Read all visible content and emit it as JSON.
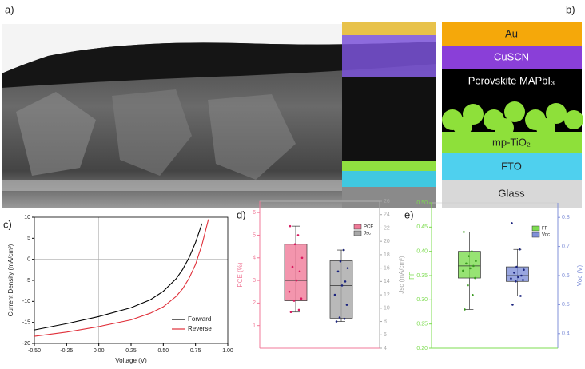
{
  "panel_labels": [
    "a)",
    "b)",
    "c)",
    "d)",
    "e)"
  ],
  "diagram": {
    "layers": [
      "Au",
      "CuSCN",
      "Perovskite MAPbI₃",
      "mp-TiO₂",
      "FTO",
      "Glass"
    ]
  },
  "chart_data": [
    {
      "type": "line",
      "x_label": "Voltage (V)",
      "y_label": "Current Density (mA/cm²)",
      "x": [
        -0.5,
        -0.25,
        0,
        0.25,
        0.4,
        0.5,
        0.6,
        0.65,
        0.7,
        0.75,
        0.8,
        0.85
      ],
      "xlim": [
        -0.5,
        1.0
      ],
      "xticks": [
        {
          "value": -0.5,
          "label": "-0.50"
        },
        {
          "value": -0.25,
          "label": "-0.25"
        },
        {
          "value": 0,
          "label": "0.00"
        },
        {
          "value": 0.25,
          "label": "0.25"
        },
        {
          "value": 0.5,
          "label": "0.50"
        },
        {
          "value": 0.75,
          "label": "0.75"
        },
        {
          "value": 1.0,
          "label": "1.00"
        }
      ],
      "ylim": [
        -20,
        10
      ],
      "yticks": [
        -20,
        -15,
        -10,
        -5,
        0,
        5,
        10
      ],
      "legend": "lower right",
      "series": [
        {
          "name": "Forward",
          "color": "#000000",
          "values": [
            -16.8,
            -15.3,
            -13.6,
            -11.5,
            -9.6,
            -7.6,
            -4.6,
            -2.4,
            0.4,
            4.0,
            8.5,
            null
          ]
        },
        {
          "name": "Reverse",
          "color": "#e0303a",
          "values": [
            -18.3,
            -17.3,
            -16.0,
            -14.4,
            -12.8,
            -11.3,
            -8.8,
            -7.0,
            -4.5,
            -1.2,
            3.5,
            9.5
          ]
        }
      ]
    },
    {
      "type": "box",
      "y_label": "PCE (%)",
      "y2_label": "Jsc (mA/cm²)",
      "ylim": [
        0,
        6.5
      ],
      "yticks": [
        1,
        2,
        3,
        4,
        5,
        6
      ],
      "y2lim": [
        4,
        26
      ],
      "y2ticks": [
        4,
        6,
        8,
        10,
        12,
        14,
        16,
        18,
        20,
        22,
        24,
        26
      ],
      "legend": "upper right",
      "series": [
        {
          "name": "PCE",
          "color": "#f07a98",
          "min": 1.6,
          "q1": 2.1,
          "median": 3.0,
          "q3": 4.6,
          "max": 5.4,
          "points": [
            1.6,
            1.7,
            2.1,
            2.2,
            2.5,
            3.0,
            3.4,
            3.6,
            4.0,
            4.6,
            5.0,
            5.4
          ]
        },
        {
          "name": "Jsc",
          "axis": "y2",
          "color": "#a8a8a8",
          "min": 8.0,
          "q1": 8.5,
          "median": 13.4,
          "q3": 17.1,
          "max": 18.7,
          "points": [
            8.0,
            8.4,
            8.6,
            10.5,
            12.0,
            13.4,
            14.0,
            15.5,
            16.0,
            17.0,
            18.7
          ]
        }
      ]
    },
    {
      "type": "box",
      "y_label": "FF",
      "y2_label": "Voc (V)",
      "ylim": [
        0.2,
        0.5
      ],
      "yticks": [
        {
          "value": 0.2,
          "label": "0.20"
        },
        0.25,
        {
          "value": 0.3,
          "label": "0.30"
        },
        0.35,
        {
          "value": 0.4,
          "label": "0.40"
        },
        0.45,
        {
          "value": 0.5,
          "label": "0.50"
        }
      ],
      "y2lim": [
        0.35,
        0.85
      ],
      "y2ticks": [
        0.4,
        0.5,
        0.6,
        0.7,
        0.8
      ],
      "legend": "upper right",
      "series": [
        {
          "name": "FF",
          "color": "#7ddc50",
          "min": 0.28,
          "q1": 0.345,
          "median": 0.37,
          "q3": 0.4,
          "max": 0.44,
          "points": [
            0.28,
            0.31,
            0.33,
            0.345,
            0.36,
            0.365,
            0.37,
            0.375,
            0.38,
            0.39,
            0.4,
            0.44
          ]
        },
        {
          "name": "Voc",
          "axis": "y2",
          "color": "#8090d8",
          "min": 0.53,
          "q1": 0.58,
          "median": 0.6,
          "q3": 0.63,
          "max": 0.69,
          "points": [
            0.5,
            0.53,
            0.58,
            0.585,
            0.59,
            0.595,
            0.6,
            0.61,
            0.62,
            0.63,
            0.69,
            0.78
          ]
        }
      ]
    }
  ]
}
